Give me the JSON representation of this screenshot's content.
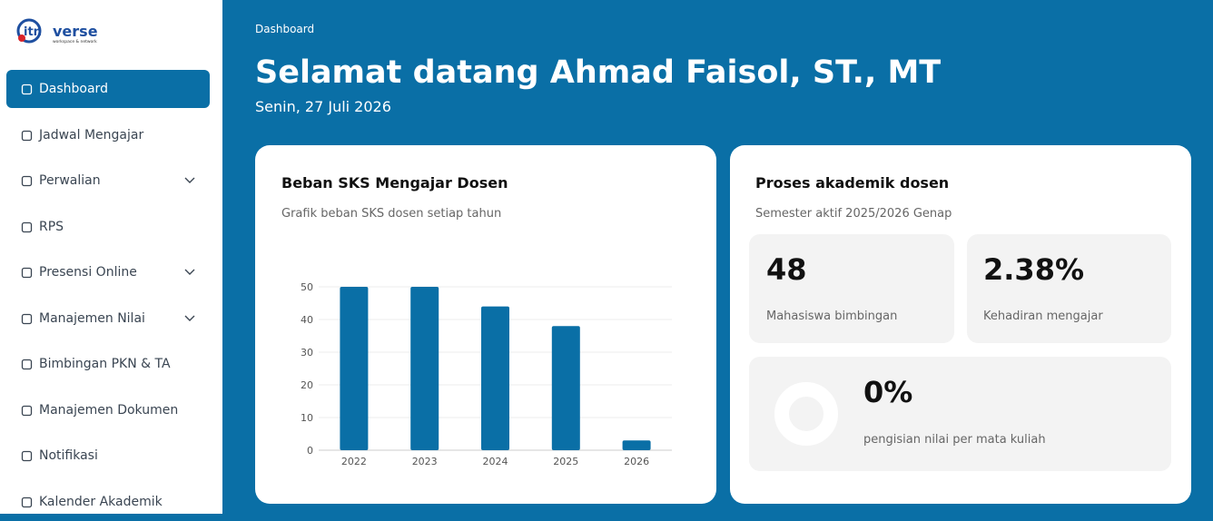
{
  "sidebar": {
    "logo": {
      "name": "verse",
      "tagline": "workspace & network"
    },
    "menu": [
      "Dashboard",
      "Jadwal Mengajar",
      "Perwalian",
      "RPS",
      "Presensi Online",
      "Manajemen Nilai",
      "Bimbingan PKN & TA",
      "Manajemen Dokumen",
      "Notifikasi",
      "Kalender Akademik"
    ]
  },
  "header": {
    "breadcrumb": "Dashboard",
    "title": "Selamat datang Ahmad Faisol, ST., MT",
    "date": "Senin, 27 Juli 2026"
  },
  "chart_data": {
    "type": "bar",
    "title": "Beban SKS Mengajar Dosen",
    "subtitle": "Grafik beban SKS dosen setiap tahun",
    "categories": [
      "2022",
      "2023",
      "2024",
      "2025",
      "2026"
    ],
    "values": [
      50,
      50,
      44,
      38,
      3
    ],
    "color": "#0a6fa6",
    "ylim": [
      0,
      50
    ],
    "yticks": [
      0,
      10,
      20,
      30,
      40,
      50
    ],
    "grid": true
  },
  "academic": {
    "title": "Proses akademik dosen",
    "subtitle": "Semester aktif 2025/2026 Genap",
    "stats": [
      {
        "value": "48",
        "label": "Mahasiswa bimbingan"
      },
      {
        "value": "2.38%",
        "label": "Kehadiran mengajar"
      }
    ],
    "completion": {
      "value": 0,
      "label": "0%",
      "caption": "pengisian nilai per mata kuliah"
    }
  }
}
